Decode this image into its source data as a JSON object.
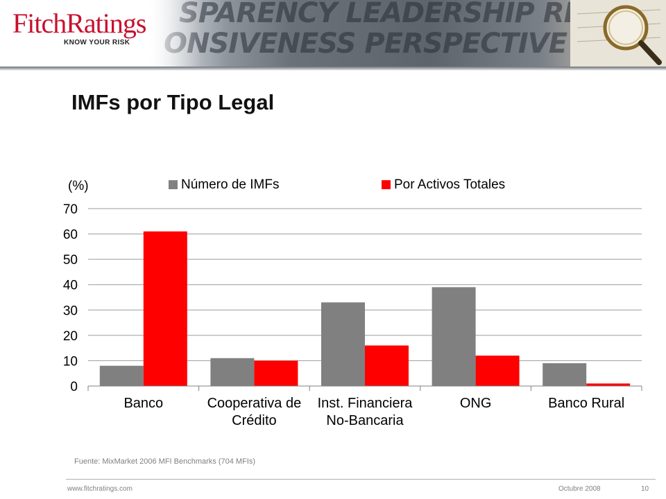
{
  "header": {
    "brand_name": "FitchRatings",
    "tagline": "KNOW YOUR RISK",
    "watermark_row1": "sparency leadership responsiveness",
    "watermark_row2": "onsiveness perspective transparency"
  },
  "title": "IMFs por Tipo Legal",
  "chart_data": {
    "type": "bar",
    "unit_label": "(%)",
    "categories": [
      [
        "Banco"
      ],
      [
        "Cooperativa de",
        "Crédito"
      ],
      [
        "Inst. Financiera",
        "No-Bancaria"
      ],
      [
        "ONG"
      ],
      [
        "Banco Rural"
      ]
    ],
    "series": [
      {
        "name": "Número de IMFs",
        "color": "#808080",
        "values": [
          8,
          11,
          33,
          39,
          9
        ]
      },
      {
        "name": "Por Activos Totales",
        "color": "#ff0000",
        "values": [
          61,
          10,
          16,
          12,
          1
        ]
      }
    ],
    "ylim": [
      0,
      70
    ],
    "yticks": [
      0,
      10,
      20,
      30,
      40,
      50,
      60,
      70
    ],
    "grid": true,
    "legend_position": "top"
  },
  "source_note": "Fuente: MixMarket 2006 MFI Benchmarks (704 MFIs)",
  "footer": {
    "url": "www.fitchratings.com",
    "date": "Octubre 2008",
    "page": "10"
  }
}
